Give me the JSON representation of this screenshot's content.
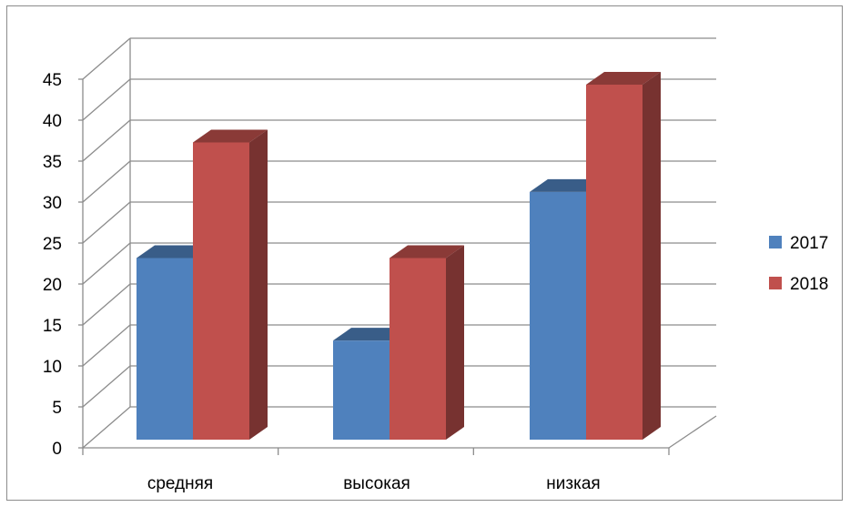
{
  "chart_data": {
    "type": "bar",
    "title": "",
    "xlabel": "",
    "ylabel": "",
    "categories": [
      "средняя",
      "высокая",
      "низкая"
    ],
    "series": [
      {
        "name": "2017",
        "values": [
          22,
          12,
          30
        ],
        "color": "#4f81bd"
      },
      {
        "name": "2018",
        "values": [
          36,
          22,
          43
        ],
        "color": "#c0504d"
      }
    ],
    "ylim": [
      0,
      45
    ],
    "yticks": [
      "0",
      "5",
      "10",
      "15",
      "20",
      "25",
      "30",
      "35",
      "40",
      "45"
    ],
    "grid": true,
    "three_d": true,
    "legend_position": "right"
  }
}
